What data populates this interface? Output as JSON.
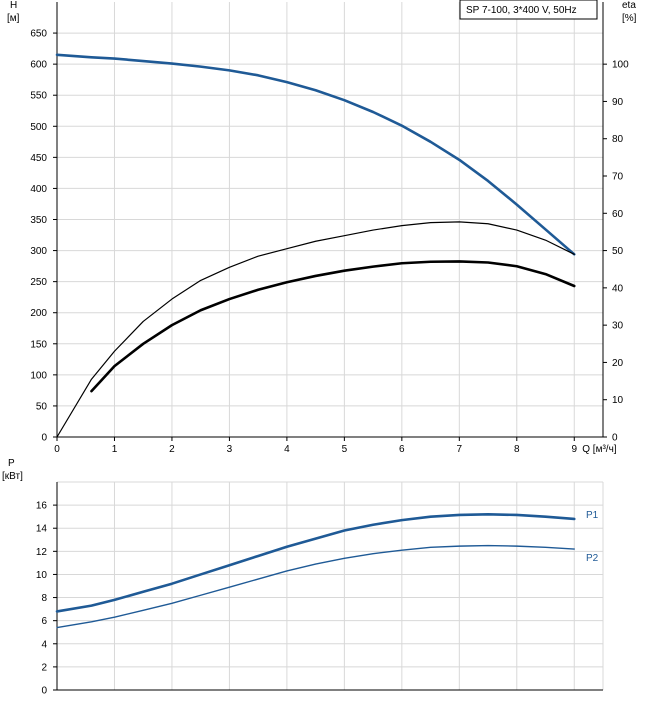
{
  "chart_data": [
    {
      "type": "line",
      "legend_text": "SP 7-100, 3*400 V, 50Hz",
      "ylabel": "H",
      "ylabel_unit": "[м]",
      "y2label": "eta",
      "y2label_unit": "[%]",
      "xlabel": "Q [м³/ч]",
      "xlim": [
        0,
        9.5
      ],
      "ylim": [
        0,
        700
      ],
      "y2lim": [
        0,
        116.67
      ],
      "xticks": [
        0,
        1,
        2,
        3,
        4,
        5,
        6,
        7,
        8,
        9
      ],
      "yticks": [
        0,
        50,
        100,
        150,
        200,
        250,
        300,
        350,
        400,
        450,
        500,
        550,
        600,
        650
      ],
      "y2ticks": [
        0,
        10,
        20,
        30,
        40,
        50,
        60,
        70,
        80,
        90,
        100
      ],
      "grid": true,
      "colors": {
        "head": "#1f5a96",
        "eta": "#000000",
        "grid": "#d8d8d8"
      },
      "series": [
        {
          "axis": "y",
          "style": "head",
          "x": [
            0,
            0.6,
            1,
            1.5,
            2,
            2.5,
            3,
            3.5,
            4,
            4.5,
            5,
            5.5,
            6,
            6.5,
            7,
            7.5,
            8,
            8.5,
            9
          ],
          "y": [
            615,
            611,
            609,
            605,
            601,
            596,
            590,
            582,
            571,
            558,
            542,
            523,
            501,
            475,
            446,
            412,
            374,
            334,
            294
          ]
        },
        {
          "axis": "y2",
          "style": "eta-thin",
          "x": [
            0,
            0.6,
            1,
            1.5,
            2,
            2.5,
            3,
            3.5,
            4,
            4.5,
            5,
            5.5,
            6,
            6.5,
            7,
            7.5,
            8,
            8.5,
            9
          ],
          "y": [
            0,
            15.5,
            23,
            31,
            37,
            42,
            45.5,
            48.5,
            50.5,
            52.5,
            54,
            55.5,
            56.7,
            57.5,
            57.7,
            57.2,
            55.5,
            52.8,
            49
          ]
        },
        {
          "axis": "y2",
          "style": "eta-thick",
          "x": [
            0.6,
            1,
            1.5,
            2,
            2.5,
            3,
            3.5,
            4,
            4.5,
            5,
            5.5,
            6,
            6.5,
            7,
            7.5,
            8,
            8.5,
            9
          ],
          "y": [
            12.3,
            19,
            25,
            30,
            34,
            37,
            39.5,
            41.5,
            43.2,
            44.6,
            45.7,
            46.6,
            47,
            47.1,
            46.8,
            45.8,
            43.7,
            40.5
          ]
        }
      ]
    },
    {
      "type": "line",
      "ylabel": "P",
      "ylabel_unit": "[кВт]",
      "xlim": [
        0,
        9.5
      ],
      "ylim": [
        0,
        18
      ],
      "yticks": [
        0,
        2,
        4,
        6,
        8,
        10,
        12,
        14,
        16
      ],
      "grid": true,
      "colors": {
        "P1": "#1f5a96",
        "P2": "#1f5a96",
        "grid": "#d8d8d8"
      },
      "series": [
        {
          "name": "P1",
          "x": [
            0,
            0.6,
            1,
            1.5,
            2,
            2.5,
            3,
            3.5,
            4,
            4.5,
            5,
            5.5,
            6,
            6.5,
            7,
            7.5,
            8,
            8.5,
            9
          ],
          "y": [
            6.8,
            7.3,
            7.8,
            8.5,
            9.2,
            10.0,
            10.8,
            11.6,
            12.4,
            13.1,
            13.8,
            14.3,
            14.7,
            15.0,
            15.15,
            15.2,
            15.15,
            15.0,
            14.8
          ]
        },
        {
          "name": "P2",
          "x": [
            0,
            0.6,
            1,
            1.5,
            2,
            2.5,
            3,
            3.5,
            4,
            4.5,
            5,
            5.5,
            6,
            6.5,
            7,
            7.5,
            8,
            8.5,
            9
          ],
          "y": [
            5.4,
            5.9,
            6.3,
            6.9,
            7.5,
            8.2,
            8.9,
            9.6,
            10.3,
            10.9,
            11.4,
            11.8,
            12.1,
            12.35,
            12.45,
            12.5,
            12.45,
            12.35,
            12.2
          ]
        }
      ]
    }
  ]
}
